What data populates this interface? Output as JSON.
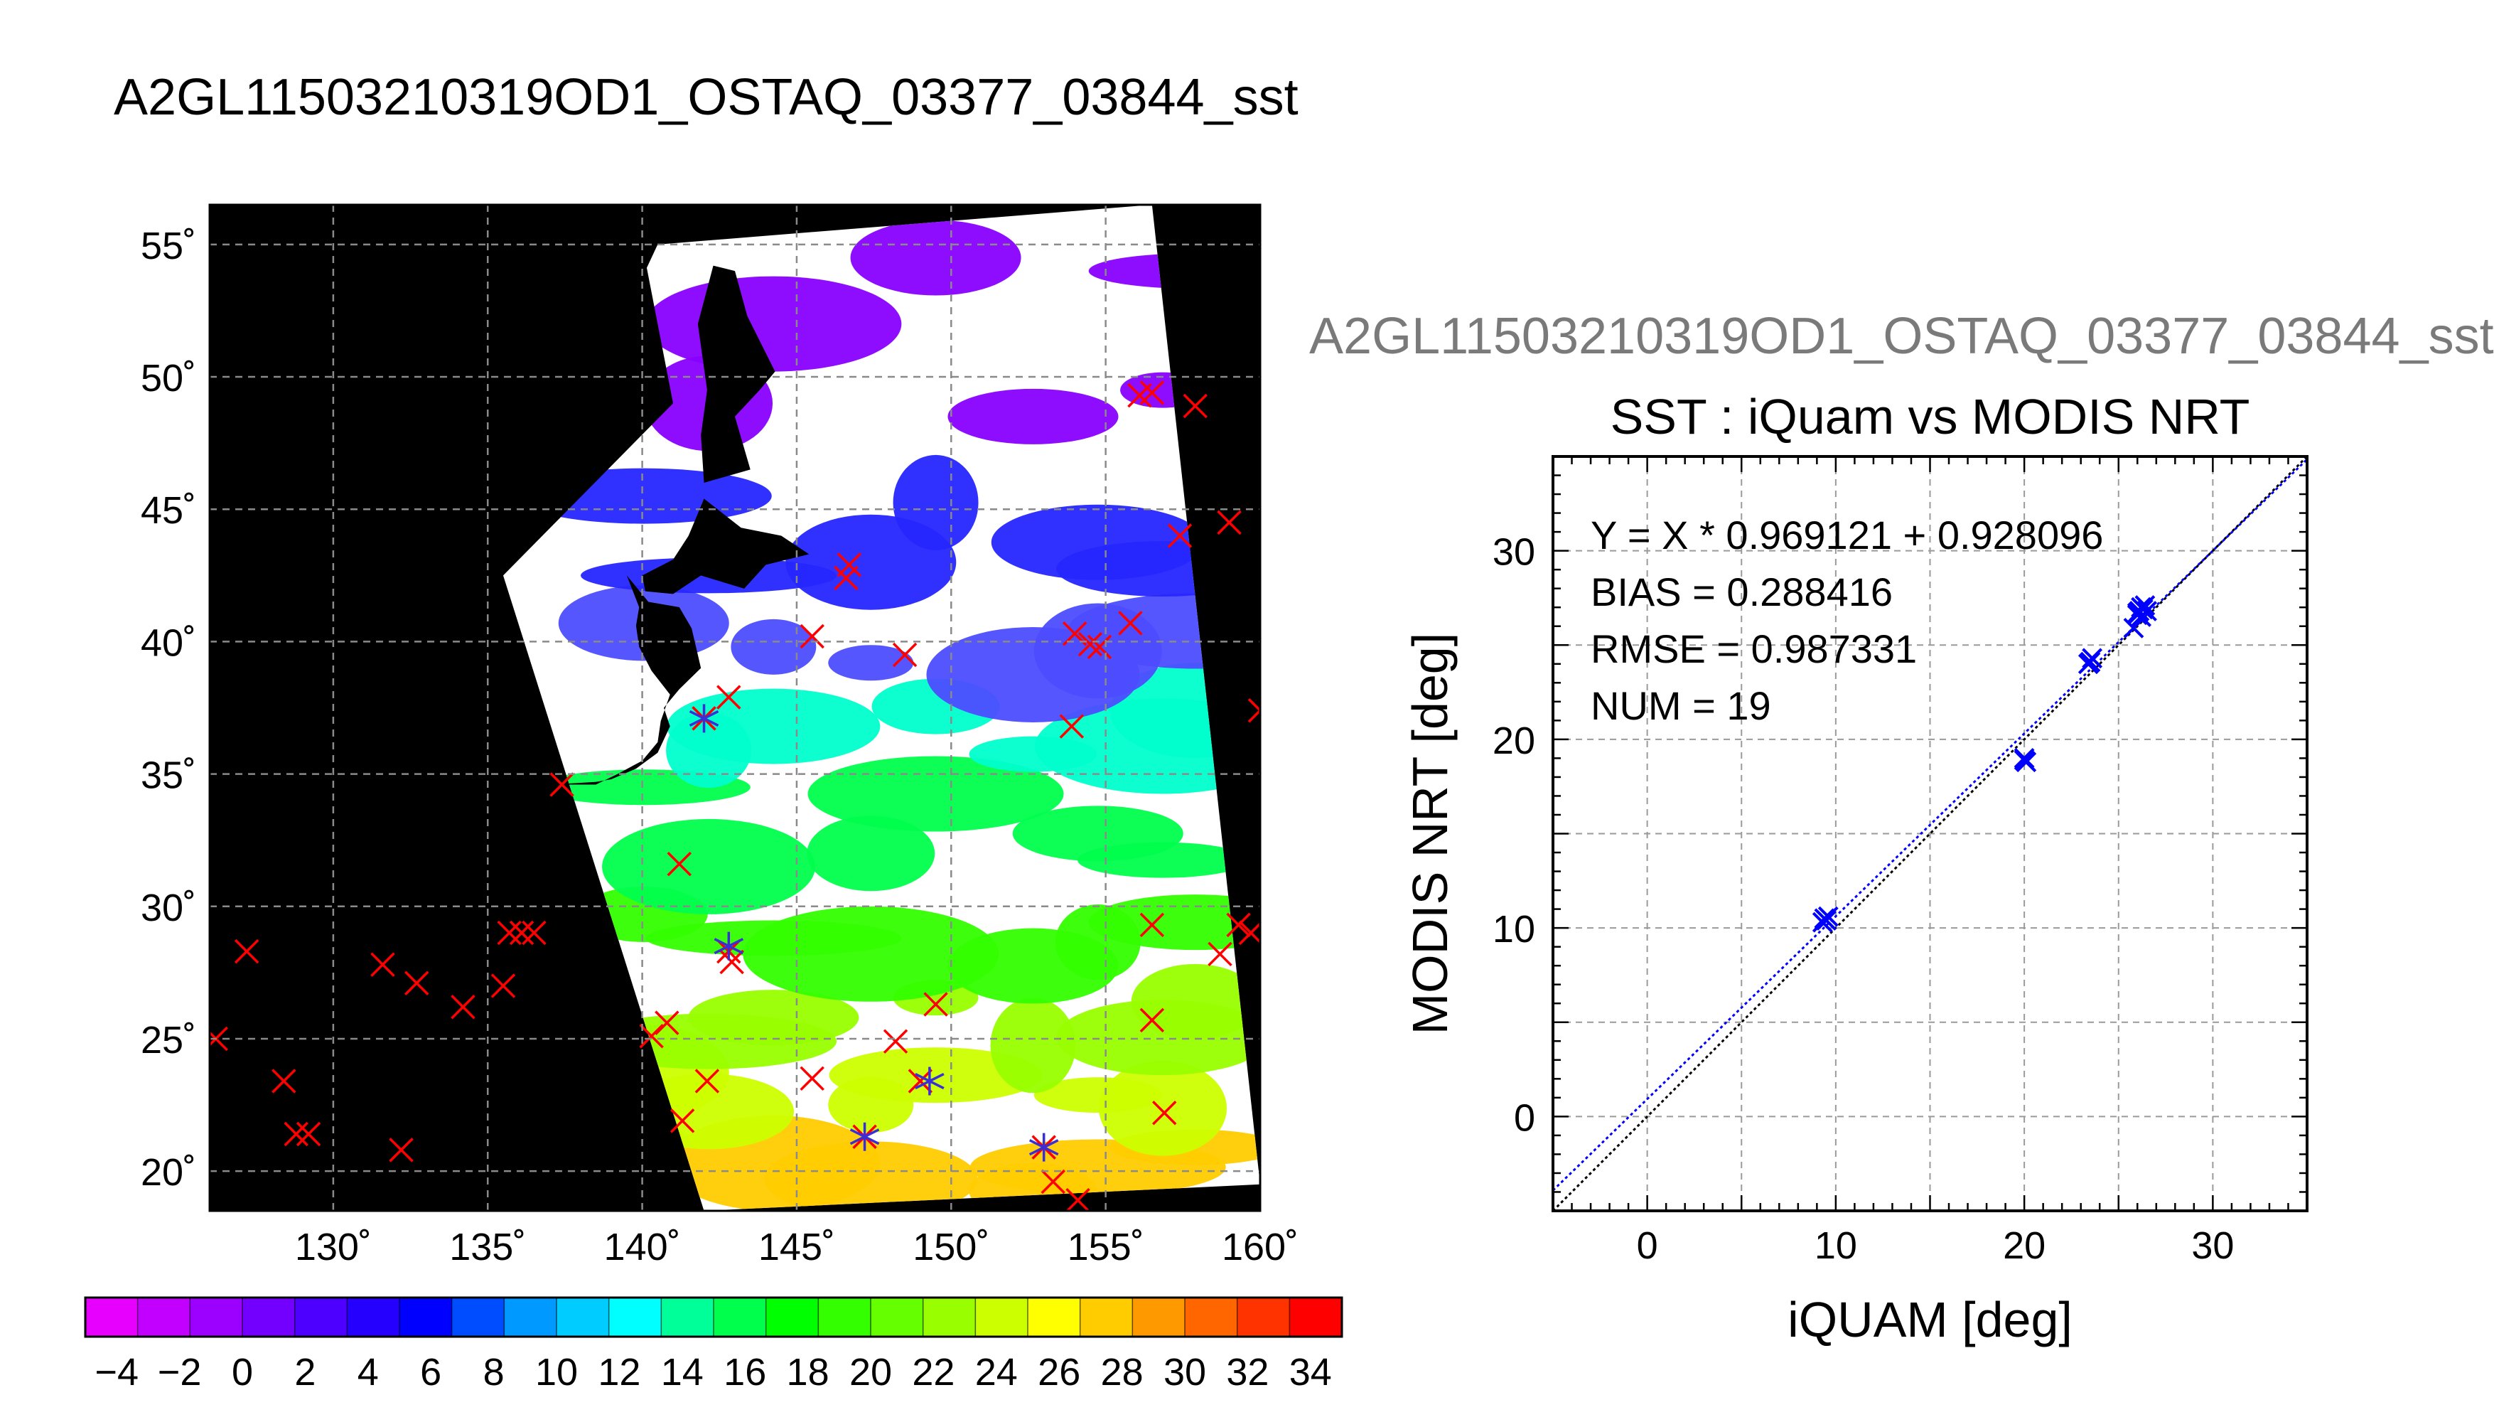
{
  "figure_title": "A2GL11503210319OD1_OSTAQ_03377_03844_sst",
  "chart_data": [
    {
      "type": "map",
      "region": "Japan / NW Pacific swath",
      "xlim": [
        126,
        160
      ],
      "ylim": [
        18.5,
        56.5
      ],
      "x_ticks": [
        130,
        135,
        140,
        145,
        150,
        155,
        160
      ],
      "y_ticks": [
        20,
        25,
        30,
        35,
        40,
        45,
        50,
        55
      ],
      "x_tick_labels": [
        "130˚",
        "135˚",
        "140˚",
        "145˚",
        "150˚",
        "155˚",
        "160˚"
      ],
      "y_tick_labels": [
        "20˚",
        "25˚",
        "30˚",
        "35˚",
        "40˚",
        "45˚",
        "50˚",
        "55˚"
      ],
      "grid": true,
      "swath_corners_lonlat": [
        [
          135.5,
          42.5
        ],
        [
          142.0,
          18.5
        ],
        [
          160.0,
          19.5
        ],
        [
          156.5,
          56.5
        ],
        [
          140.5,
          55.0
        ]
      ],
      "land_color": "#000000",
      "cloud_color": "#ffffff",
      "insitu_markers_x": [
        [
          127.2,
          28.3
        ],
        [
          126.2,
          25.0
        ],
        [
          128.4,
          23.4
        ],
        [
          128.8,
          21.4
        ],
        [
          129.2,
          21.4
        ],
        [
          131.6,
          27.8
        ],
        [
          132.7,
          27.1
        ],
        [
          132.2,
          20.8
        ],
        [
          134.2,
          26.2
        ],
        [
          135.5,
          27.0
        ],
        [
          135.7,
          29.0
        ],
        [
          136.1,
          29.0
        ],
        [
          136.5,
          29.0
        ],
        [
          137.4,
          34.6
        ],
        [
          140.3,
          25.1
        ],
        [
          140.8,
          25.6
        ],
        [
          141.2,
          31.6
        ],
        [
          141.3,
          21.9
        ],
        [
          142.1,
          23.4
        ],
        [
          142.0,
          37.1
        ],
        [
          142.8,
          37.9
        ],
        [
          142.8,
          28.3
        ],
        [
          142.9,
          27.9
        ],
        [
          145.5,
          23.5
        ],
        [
          145.5,
          40.2
        ],
        [
          146.6,
          42.4
        ],
        [
          146.7,
          42.9
        ],
        [
          147.2,
          21.3
        ],
        [
          148.2,
          24.9
        ],
        [
          148.5,
          39.5
        ],
        [
          149.0,
          23.4
        ],
        [
          149.5,
          26.3
        ],
        [
          153.0,
          20.9
        ],
        [
          153.3,
          19.6
        ],
        [
          154.0,
          40.3
        ],
        [
          154.5,
          39.9
        ],
        [
          154.8,
          39.8
        ],
        [
          153.9,
          36.8
        ],
        [
          154.1,
          18.9
        ],
        [
          155.8,
          40.7
        ],
        [
          156.1,
          49.3
        ],
        [
          156.5,
          49.4
        ],
        [
          156.5,
          29.3
        ],
        [
          156.5,
          25.7
        ],
        [
          156.9,
          22.2
        ],
        [
          157.4,
          44.0
        ],
        [
          157.9,
          48.9
        ],
        [
          158.7,
          28.2
        ],
        [
          159.0,
          44.5
        ],
        [
          159.3,
          29.3
        ],
        [
          159.7,
          29.0
        ],
        [
          160.0,
          37.4
        ]
      ],
      "matchup_markers_star": [
        [
          142.0,
          37.1
        ],
        [
          142.8,
          28.5
        ],
        [
          147.2,
          21.3
        ],
        [
          149.3,
          23.4
        ],
        [
          153.0,
          20.9
        ]
      ]
    },
    {
      "type": "scatter",
      "title": "SST : iQuam vs MODIS NRT",
      "xlabel": "iQUAM [deg]",
      "ylabel": "MODIS NRT [deg]",
      "xlim": [
        -5,
        35
      ],
      "ylim": [
        -5,
        35
      ],
      "x_ticks": [
        0,
        10,
        20,
        30
      ],
      "y_ticks": [
        0,
        10,
        20,
        30
      ],
      "grid": true,
      "stats": {
        "fit": "Y = X * 0.969121 + 0.928096",
        "bias": "BIAS = 0.288416",
        "rmse": "RMSE = 0.987331",
        "num": "NUM = 19"
      },
      "points": [
        [
          9.3,
          10.3
        ],
        [
          9.4,
          10.5
        ],
        [
          9.5,
          10.4
        ],
        [
          20.0,
          18.9
        ],
        [
          20.0,
          19.0
        ],
        [
          23.5,
          24.1
        ],
        [
          23.6,
          24.3
        ],
        [
          25.8,
          25.9
        ],
        [
          26.0,
          26.6
        ],
        [
          26.1,
          26.8
        ],
        [
          26.2,
          27.0
        ],
        [
          26.4,
          27.1
        ],
        [
          26.5,
          26.8
        ],
        [
          26.3,
          26.9
        ],
        [
          26.0,
          26.7
        ],
        [
          23.4,
          24.0
        ],
        [
          20.1,
          18.8
        ],
        [
          9.6,
          10.6
        ],
        [
          26.2,
          26.5
        ]
      ],
      "lines": {
        "one_to_one": {
          "slope": 1.0,
          "intercept": 0.0,
          "color": "#000000",
          "style": "dotted"
        },
        "fit": {
          "slope": 0.969121,
          "intercept": 0.928096,
          "color": "#0000ff",
          "style": "dotted"
        }
      },
      "marker_color": "#0000ff"
    },
    {
      "type": "colorbar",
      "range": [
        -5,
        35
      ],
      "step": 2,
      "tick_labels": [
        "−4",
        "−2",
        "0",
        "2",
        "4",
        "6",
        "8",
        "10",
        "12",
        "14",
        "16",
        "18",
        "20",
        "22",
        "24",
        "26",
        "28",
        "30",
        "32",
        "34"
      ],
      "colors": [
        "#e800ff",
        "#c200ff",
        "#9c00ff",
        "#7300ff",
        "#4d00ff",
        "#2600ff",
        "#0000ff",
        "#004dff",
        "#0099ff",
        "#00ccff",
        "#00ffff",
        "#00ff99",
        "#00ff4d",
        "#00ff00",
        "#33ff00",
        "#66ff00",
        "#99ff00",
        "#ccff00",
        "#ffff00",
        "#ffcc00",
        "#ff9900",
        "#ff6600",
        "#ff3300",
        "#ff0000"
      ]
    }
  ]
}
